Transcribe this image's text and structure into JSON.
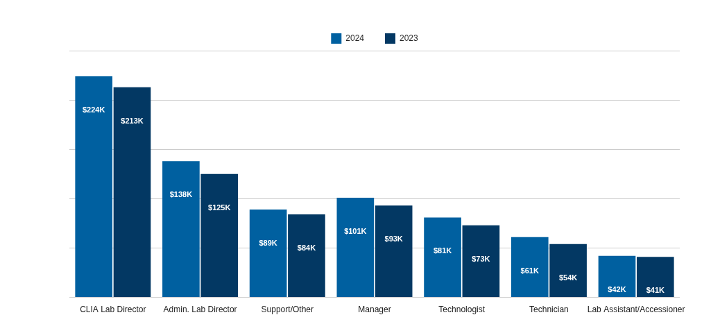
{
  "chart_data": {
    "type": "bar",
    "categories": [
      "CLIA Lab Director",
      "Admin. Lab Director",
      "Support/Other",
      "Manager",
      "Technologist",
      "Technician",
      "Lab Assistant/Accessioner"
    ],
    "series": [
      {
        "name": "2024",
        "color": "#0060a0",
        "values": [
          224,
          138,
          89,
          101,
          81,
          61,
          42
        ],
        "value_labels": [
          "$224K",
          "$138K",
          "$89K",
          "$101K",
          "$81K",
          "$61K",
          "$42K"
        ]
      },
      {
        "name": "2023",
        "color": "#033863",
        "values": [
          213,
          125,
          84,
          93,
          73,
          54,
          41
        ],
        "value_labels": [
          "$213K",
          "$125K",
          "$84K",
          "$93K",
          "$73K",
          "$54K",
          "$41K"
        ]
      }
    ],
    "ylim": [
      0,
      250
    ],
    "yticks": [
      0,
      50,
      100,
      150,
      200,
      250
    ],
    "grid": true,
    "legend": "top",
    "data_labels": true,
    "tick_labels": "x"
  }
}
